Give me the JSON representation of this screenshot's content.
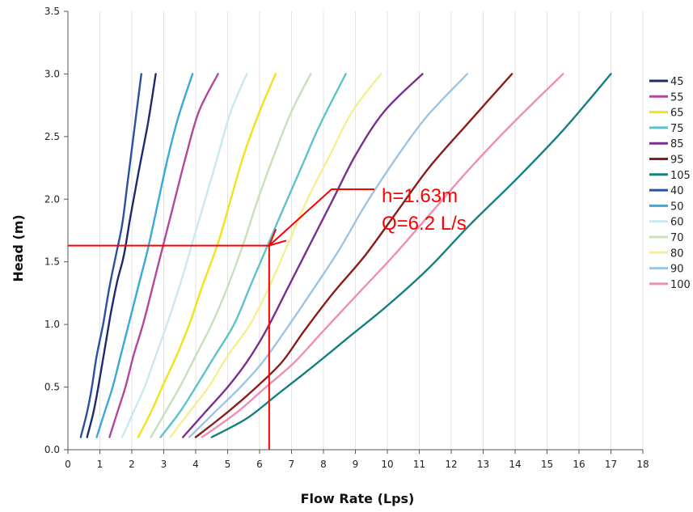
{
  "chart_data": {
    "type": "line",
    "xlabel": "Flow Rate (Lps)",
    "ylabel": "Head (m)",
    "xlim": [
      0,
      18
    ],
    "ylim": [
      0,
      3.5
    ],
    "x_ticks": [
      "0",
      "1",
      "2",
      "3",
      "4",
      "5",
      "6",
      "7",
      "8",
      "9",
      "10",
      "11",
      "12",
      "13",
      "14",
      "15",
      "16",
      "17",
      "18"
    ],
    "y_ticks": [
      "0.0",
      "0.5",
      "1.0",
      "1.5",
      "2.0",
      "2.5",
      "3.0",
      "3.5"
    ],
    "grid": "vertical",
    "legend_position": "right",
    "series": [
      {
        "name": "45",
        "color": "#1f2a6e",
        "points": [
          [
            0.6,
            0.1
          ],
          [
            0.8,
            0.3
          ],
          [
            0.95,
            0.5
          ],
          [
            1.15,
            0.8
          ],
          [
            1.35,
            1.1
          ],
          [
            1.55,
            1.35
          ],
          [
            1.75,
            1.55
          ],
          [
            1.95,
            1.85
          ],
          [
            2.2,
            2.2
          ],
          [
            2.5,
            2.6
          ],
          [
            2.75,
            3.0
          ]
        ]
      },
      {
        "name": "55",
        "color": "#b2489a",
        "points": [
          [
            1.3,
            0.1
          ],
          [
            1.55,
            0.3
          ],
          [
            1.8,
            0.5
          ],
          [
            2.05,
            0.75
          ],
          [
            2.35,
            1.0
          ],
          [
            2.7,
            1.35
          ],
          [
            3.0,
            1.65
          ],
          [
            3.35,
            2.0
          ],
          [
            3.7,
            2.35
          ],
          [
            4.1,
            2.7
          ],
          [
            4.7,
            3.0
          ]
        ]
      },
      {
        "name": "65",
        "color": "#f2e21a",
        "points": [
          [
            2.2,
            0.1
          ],
          [
            2.6,
            0.3
          ],
          [
            2.95,
            0.5
          ],
          [
            3.4,
            0.75
          ],
          [
            3.8,
            1.0
          ],
          [
            4.2,
            1.3
          ],
          [
            4.7,
            1.65
          ],
          [
            5.1,
            2.0
          ],
          [
            5.5,
            2.35
          ],
          [
            6.0,
            2.7
          ],
          [
            6.5,
            3.0
          ]
        ]
      },
      {
        "name": "75",
        "color": "#5cc4c8",
        "points": [
          [
            2.9,
            0.1
          ],
          [
            3.5,
            0.3
          ],
          [
            4.0,
            0.5
          ],
          [
            4.6,
            0.75
          ],
          [
            5.2,
            1.0
          ],
          [
            5.7,
            1.3
          ],
          [
            6.2,
            1.6
          ],
          [
            6.7,
            1.9
          ],
          [
            7.3,
            2.25
          ],
          [
            7.9,
            2.6
          ],
          [
            8.7,
            3.0
          ]
        ]
      },
      {
        "name": "85",
        "color": "#7a2f8e",
        "points": [
          [
            3.6,
            0.1
          ],
          [
            4.3,
            0.3
          ],
          [
            5.0,
            0.5
          ],
          [
            5.6,
            0.7
          ],
          [
            6.2,
            0.95
          ],
          [
            6.9,
            1.3
          ],
          [
            7.6,
            1.65
          ],
          [
            8.3,
            2.0
          ],
          [
            9.0,
            2.35
          ],
          [
            9.9,
            2.7
          ],
          [
            11.1,
            3.0
          ]
        ]
      },
      {
        "name": "95",
        "color": "#8b1c1c",
        "points": [
          [
            4.0,
            0.1
          ],
          [
            5.0,
            0.3
          ],
          [
            5.9,
            0.5
          ],
          [
            6.7,
            0.7
          ],
          [
            7.4,
            0.95
          ],
          [
            8.3,
            1.25
          ],
          [
            9.3,
            1.55
          ],
          [
            10.3,
            1.9
          ],
          [
            11.3,
            2.25
          ],
          [
            12.5,
            2.6
          ],
          [
            13.9,
            3.0
          ]
        ]
      },
      {
        "name": "105",
        "color": "#16807e",
        "points": [
          [
            4.5,
            0.1
          ],
          [
            5.6,
            0.25
          ],
          [
            6.6,
            0.45
          ],
          [
            7.6,
            0.65
          ],
          [
            8.8,
            0.9
          ],
          [
            10.0,
            1.15
          ],
          [
            11.3,
            1.45
          ],
          [
            12.6,
            1.8
          ],
          [
            14.0,
            2.15
          ],
          [
            15.5,
            2.55
          ],
          [
            17.0,
            3.0
          ]
        ]
      },
      {
        "name": "40",
        "color": "#2b4fa3",
        "points": [
          [
            0.4,
            0.1
          ],
          [
            0.6,
            0.3
          ],
          [
            0.75,
            0.5
          ],
          [
            0.9,
            0.75
          ],
          [
            1.1,
            1.0
          ],
          [
            1.3,
            1.3
          ],
          [
            1.5,
            1.55
          ],
          [
            1.7,
            1.8
          ],
          [
            1.85,
            2.1
          ],
          [
            2.05,
            2.5
          ],
          [
            2.3,
            3.0
          ]
        ]
      },
      {
        "name": "50",
        "color": "#3aa8d8",
        "points": [
          [
            0.9,
            0.1
          ],
          [
            1.15,
            0.3
          ],
          [
            1.4,
            0.5
          ],
          [
            1.65,
            0.75
          ],
          [
            1.9,
            1.0
          ],
          [
            2.2,
            1.3
          ],
          [
            2.5,
            1.6
          ],
          [
            2.8,
            1.95
          ],
          [
            3.1,
            2.3
          ],
          [
            3.45,
            2.65
          ],
          [
            3.9,
            3.0
          ]
        ]
      },
      {
        "name": "60",
        "color": "#c9e9f2",
        "points": [
          [
            1.7,
            0.1
          ],
          [
            2.05,
            0.3
          ],
          [
            2.4,
            0.5
          ],
          [
            2.75,
            0.75
          ],
          [
            3.1,
            1.0
          ],
          [
            3.55,
            1.35
          ],
          [
            3.95,
            1.7
          ],
          [
            4.3,
            2.0
          ],
          [
            4.7,
            2.35
          ],
          [
            5.1,
            2.7
          ],
          [
            5.6,
            3.0
          ]
        ]
      },
      {
        "name": "70",
        "color": "#c8e0b8",
        "points": [
          [
            2.6,
            0.1
          ],
          [
            3.05,
            0.3
          ],
          [
            3.5,
            0.5
          ],
          [
            4.0,
            0.75
          ],
          [
            4.5,
            1.0
          ],
          [
            5.0,
            1.3
          ],
          [
            5.5,
            1.65
          ],
          [
            5.95,
            2.0
          ],
          [
            6.45,
            2.35
          ],
          [
            7.0,
            2.7
          ],
          [
            7.6,
            3.0
          ]
        ]
      },
      {
        "name": "80",
        "color": "#f4ef90",
        "points": [
          [
            3.2,
            0.1
          ],
          [
            3.8,
            0.3
          ],
          [
            4.4,
            0.5
          ],
          [
            5.0,
            0.75
          ],
          [
            5.7,
            1.0
          ],
          [
            6.3,
            1.3
          ],
          [
            6.9,
            1.65
          ],
          [
            7.5,
            2.0
          ],
          [
            8.2,
            2.35
          ],
          [
            8.9,
            2.7
          ],
          [
            9.8,
            3.0
          ]
        ]
      },
      {
        "name": "90",
        "color": "#9cc4e4",
        "points": [
          [
            3.8,
            0.1
          ],
          [
            4.6,
            0.3
          ],
          [
            5.4,
            0.5
          ],
          [
            6.1,
            0.7
          ],
          [
            6.8,
            0.95
          ],
          [
            7.6,
            1.25
          ],
          [
            8.5,
            1.6
          ],
          [
            9.3,
            1.95
          ],
          [
            10.2,
            2.3
          ],
          [
            11.2,
            2.65
          ],
          [
            12.5,
            3.0
          ]
        ]
      },
      {
        "name": "100",
        "color": "#f08db5",
        "points": [
          [
            4.2,
            0.1
          ],
          [
            5.3,
            0.3
          ],
          [
            6.2,
            0.5
          ],
          [
            7.1,
            0.7
          ],
          [
            8.0,
            0.95
          ],
          [
            9.1,
            1.25
          ],
          [
            10.2,
            1.55
          ],
          [
            11.4,
            1.9
          ],
          [
            12.6,
            2.25
          ],
          [
            13.9,
            2.6
          ],
          [
            15.5,
            3.0
          ]
        ]
      }
    ],
    "annotation": {
      "lines": [
        "h=1.63m",
        "Q=6.2 L/s"
      ],
      "point": [
        6.3,
        1.63
      ],
      "color": "#ff0000"
    }
  }
}
